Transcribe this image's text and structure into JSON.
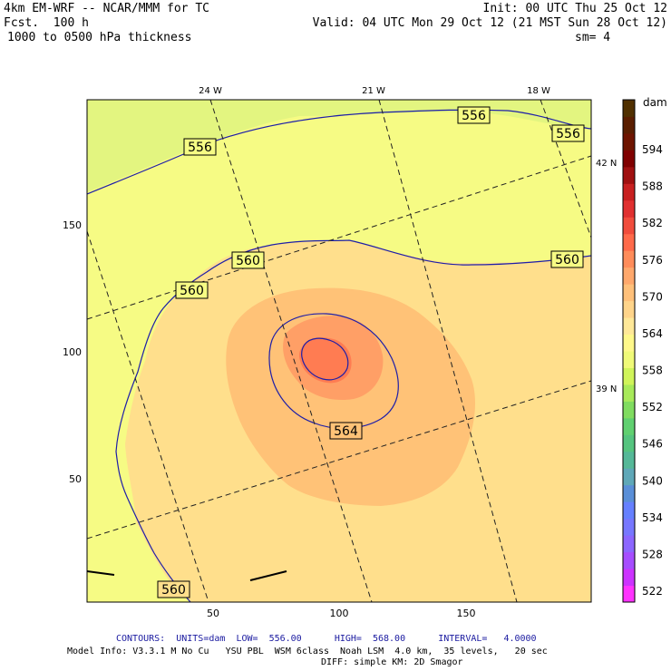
{
  "header": {
    "model": "4km EM-WRF -- NCAR/MMM for TC",
    "forecast": "Fcst.  100 h",
    "field": "1000 to 0500 hPa thickness",
    "init": "Init: 00 UTC Thu 25 Oct 12",
    "valid": "Valid: 04 UTC Mon 29 Oct 12 (21 MST Sun 28 Oct 12)",
    "smoothing": "sm= 4"
  },
  "map": {
    "x_ticks": [
      "50",
      "100",
      "150"
    ],
    "y_ticks": [
      "150",
      "100",
      "50"
    ],
    "lon_labels": [
      "24 W",
      "21 W",
      "18 W"
    ],
    "lat_labels": [
      "42 N",
      "39 N"
    ],
    "contour_labels": [
      "556",
      "556",
      "556",
      "560",
      "560",
      "560",
      "560",
      "564"
    ]
  },
  "colorbar": {
    "unit": "dam",
    "labels": [
      "594",
      "588",
      "582",
      "576",
      "570",
      "564",
      "558",
      "552",
      "546",
      "540",
      "534",
      "528",
      "522"
    ],
    "colors": [
      "#ff33ff",
      "#cc33ff",
      "#a64dff",
      "#8c66ff",
      "#7777ff",
      "#6680ff",
      "#5a8fd8",
      "#5fa8b8",
      "#55b898",
      "#55c47f",
      "#60d070",
      "#80dc60",
      "#a8ea5a",
      "#d0f45a",
      "#f0fa78",
      "#fff88a",
      "#ffe898",
      "#ffd48a",
      "#ffc07a",
      "#ffa86c",
      "#ff8c5a",
      "#ff6a4a",
      "#f04c3c",
      "#e03030",
      "#c82020",
      "#a01010",
      "#800000",
      "#6e1400",
      "#5a1e00",
      "#503000"
    ]
  },
  "footer": {
    "contours": "CONTOURS:  UNITS=dam  LOW=  556.00      HIGH=  568.00      INTERVAL=   4.0000",
    "model_info": "Model Info: V3.3.1 M No Cu   YSU PBL  WSM 6class  Noah LSM  4.0 km,  35 levels,   20 sec",
    "diff": "DIFF: simple KM: 2D Smagor"
  }
}
